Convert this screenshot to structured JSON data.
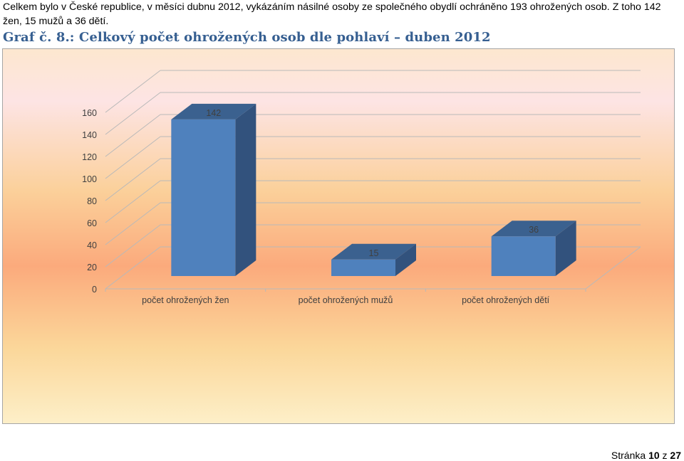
{
  "document": {
    "intro_text": "Celkem bylo v České republice,  v měsíci dubnu 2012, vykázáním násilné osoby ze společného obydlí ochráněno 193 ohrožených osob. Z toho 142 žen, 15 mužů a 36 dětí.",
    "figure_heading": "Graf č. 8.: Celkový počet ohrožených osob dle pohlaví – duben 2012",
    "footer": {
      "prefix": "Stránka",
      "page": "10",
      "separator": "z",
      "total": "27"
    }
  },
  "chart_data": {
    "type": "bar",
    "categories": [
      "počet ohrožených žen",
      "počet ohrožených mužů",
      "počet ohrožených dětí"
    ],
    "values": [
      142,
      15,
      36
    ],
    "data_labels": [
      "142",
      "15",
      "36"
    ],
    "ylim": [
      0,
      160
    ],
    "yticks": [
      "0",
      "20",
      "40",
      "60",
      "80",
      "100",
      "120",
      "140",
      "160"
    ],
    "title": "",
    "xlabel": "",
    "ylabel": "",
    "grid": true,
    "legend": "none",
    "colors": {
      "bar_front": "#4F81BD",
      "bar_side": "#32527D",
      "bar_top": "#3B618F",
      "grid": "#b9b9b9",
      "text": "#404040"
    }
  }
}
